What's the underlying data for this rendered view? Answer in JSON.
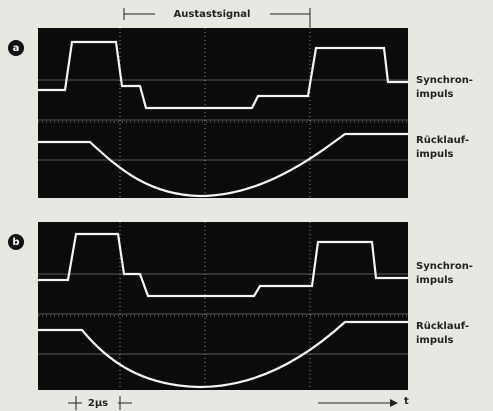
{
  "header": {
    "label": "Austastsignal"
  },
  "panels": [
    {
      "label": "a",
      "annotations": [
        {
          "lines": [
            "Synchron-",
            "impuls"
          ]
        },
        {
          "lines": [
            "Rücklauf-",
            "impuls"
          ]
        }
      ]
    },
    {
      "label": "b",
      "annotations": [
        {
          "lines": [
            "Synchron-",
            "impuls"
          ]
        },
        {
          "lines": [
            "Rücklauf-",
            "impuls"
          ]
        }
      ]
    }
  ],
  "footer": {
    "scale": "2µs",
    "axis": "t"
  }
}
